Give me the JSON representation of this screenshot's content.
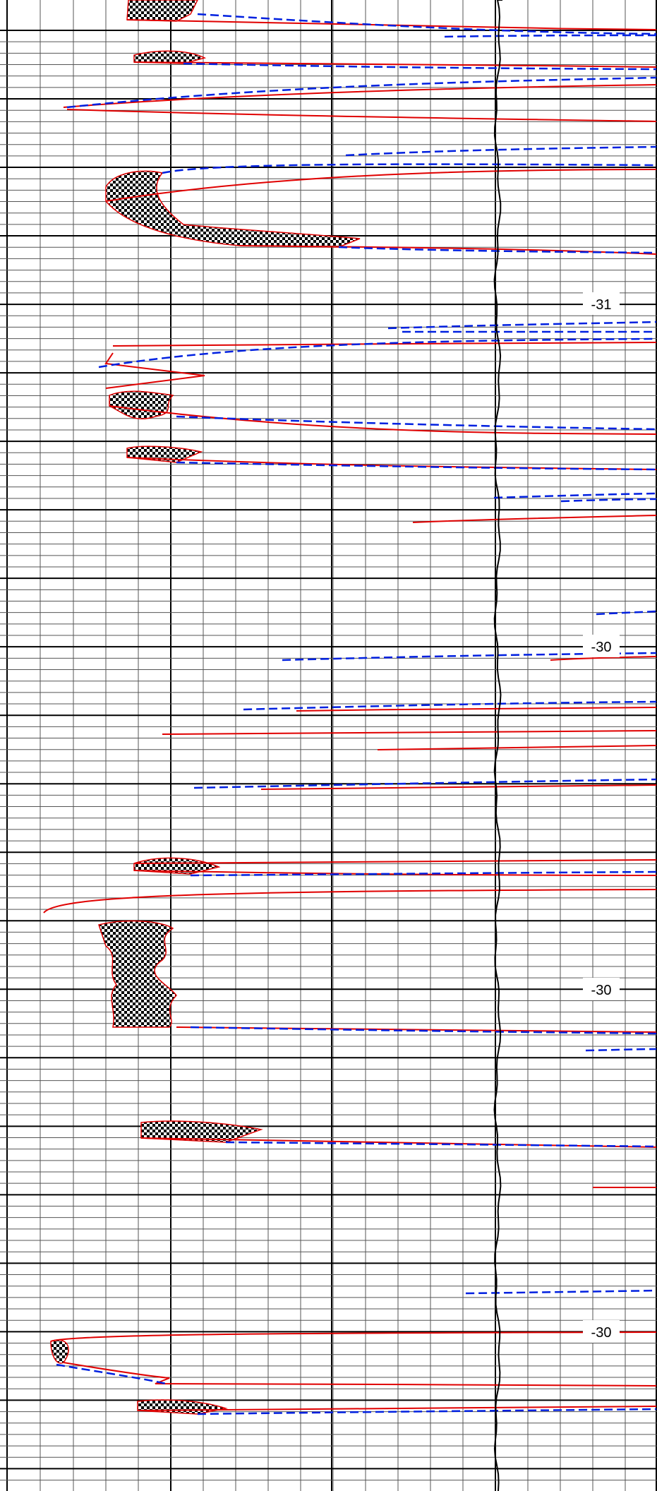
{
  "chart_data": {
    "type": "line",
    "title": "",
    "xlabel": "",
    "ylabel": "",
    "grid": true,
    "depth_labels": [
      "-31",
      "-30",
      "-30",
      "-30"
    ],
    "colors": {
      "background": "#ffffff",
      "grid_minor": "#555555",
      "grid_major": "#000000",
      "curve_solid": "#e00000",
      "curve_dashed": "#0020e0",
      "reference_curve": "#000000",
      "fill_pattern": "#000000"
    },
    "series": [
      {
        "style": "solid",
        "color": "#e00000"
      },
      {
        "style": "dashed",
        "color": "#0020e0"
      },
      {
        "style": "reference",
        "color": "#000000"
      }
    ]
  }
}
